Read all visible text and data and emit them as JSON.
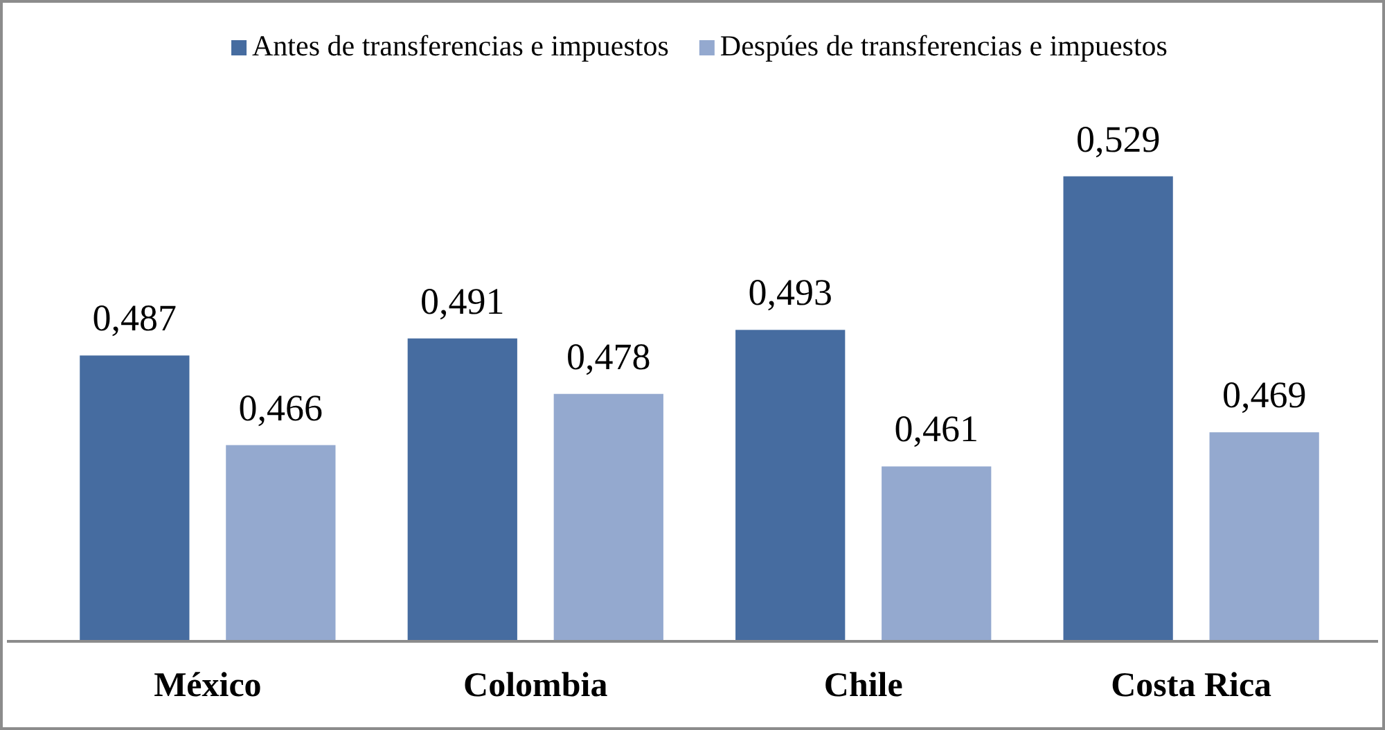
{
  "chart_data": {
    "type": "bar",
    "categories": [
      "México",
      "Colombia",
      "Chile",
      "Costa Rica"
    ],
    "series": [
      {
        "name": "Antes de transferencias e impuestos",
        "color": "#466ca0",
        "values": [
          0.487,
          0.491,
          0.493,
          0.529
        ],
        "value_labels": [
          "0,487",
          "0,491",
          "0,493",
          "0,529"
        ]
      },
      {
        "name": "Despúes de transferencias e impuestos",
        "color": "#94a9cf",
        "values": [
          0.466,
          0.478,
          0.461,
          0.469
        ],
        "value_labels": [
          "0,466",
          "0,478",
          "0,461",
          "0,469"
        ]
      }
    ],
    "ylim": [
      0.42,
      0.57
    ],
    "legend": "top",
    "tick_labels": "x"
  }
}
